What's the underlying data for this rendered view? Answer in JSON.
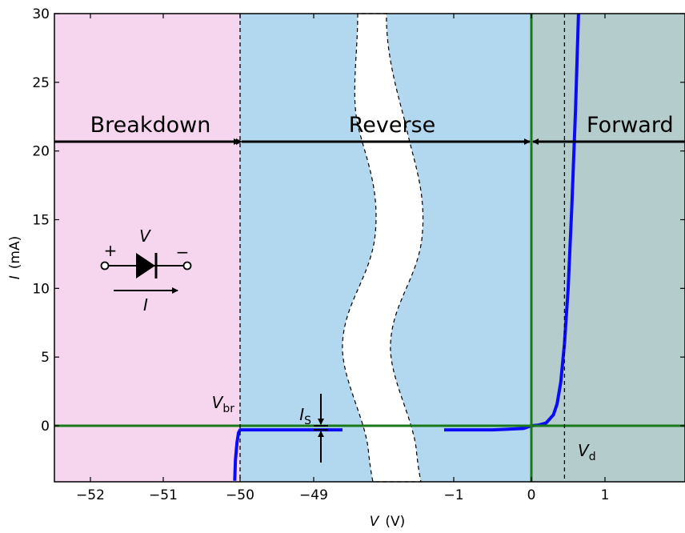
{
  "chart_data": {
    "type": "line",
    "title": "",
    "xlabel": "V",
    "xlabel_unit": "(V)",
    "ylabel": "I",
    "ylabel_unit": "(mA)",
    "ylim": [
      -4,
      30
    ],
    "grid": false,
    "axis_breaks": "x axis is broken between -49 and -1 (white wavy gap)",
    "x_ticks": [
      {
        "label": "−52",
        "value": -52
      },
      {
        "label": "−51",
        "value": -51
      },
      {
        "label": "−50",
        "value": -50
      },
      {
        "label": "−49",
        "value": -49
      },
      {
        "label": "−1",
        "value": -1
      },
      {
        "label": "0",
        "value": 0
      },
      {
        "label": "1",
        "value": 1
      }
    ],
    "y_ticks": [
      {
        "label": "0",
        "value": 0
      },
      {
        "label": "5",
        "value": 5
      },
      {
        "label": "10",
        "value": 10
      },
      {
        "label": "15",
        "value": 15
      },
      {
        "label": "20",
        "value": 20
      },
      {
        "label": "25",
        "value": 25
      },
      {
        "label": "30",
        "value": 30
      }
    ],
    "regions": [
      {
        "name": "Breakdown",
        "from": -52.4,
        "to": -50,
        "color": "#f5d6ee"
      },
      {
        "name": "Reverse",
        "from": -50,
        "to": 0,
        "color": "#b2d8ef"
      },
      {
        "name": "Forward",
        "from": 0,
        "to": 1.8,
        "color": "#b4cccb"
      }
    ],
    "series": [
      {
        "color": "#0b0bf5",
        "segments": [
          {
            "x": [
              -50.07,
              -50.06,
              -50.04,
              -50.02,
              -50.0,
              -49.98,
              -49.5,
              -49.0,
              -48.6
            ],
            "y": [
              -4.0,
              -2.5,
              -1.2,
              -0.5,
              -0.3,
              -0.3,
              -0.3,
              -0.3,
              -0.3
            ]
          },
          {
            "x": [
              -1.1,
              -0.5,
              -0.1,
              0.0
            ],
            "y": [
              -0.3,
              -0.3,
              -0.2,
              0.0
            ]
          },
          {
            "x": [
              0.0,
              0.1,
              0.2,
              0.3,
              0.35,
              0.4,
              0.45,
              0.5,
              0.55,
              0.6,
              0.64
            ],
            "y": [
              0.0,
              0.05,
              0.2,
              0.8,
              1.6,
              3.2,
              6.0,
              10.0,
              16.0,
              23.0,
              30.0
            ]
          }
        ]
      }
    ],
    "reference_lines": [
      {
        "axis": "x",
        "value": -50,
        "label_main": "V",
        "label_sub": "br",
        "style": "dashed"
      },
      {
        "axis": "x",
        "value": 0.45,
        "label_main": "V",
        "label_sub": "d",
        "style": "dashed"
      },
      {
        "axis": "x",
        "value": 0,
        "style": "solid",
        "color": "#1a7a1a"
      },
      {
        "axis": "y",
        "value": 0,
        "style": "solid",
        "color": "#1a7a1a"
      }
    ],
    "annotations": {
      "breakdown_label": "Breakdown",
      "reverse_label": "Reverse",
      "forward_label": "Forward",
      "is_label_main": "I",
      "is_label_sub": "S",
      "vbr_main": "V",
      "vbr_sub": "br",
      "vd_main": "V",
      "vd_sub": "d"
    },
    "diode_symbol": {
      "voltage_label": "V",
      "plus": "+",
      "minus": "−",
      "current_label": "I"
    }
  }
}
